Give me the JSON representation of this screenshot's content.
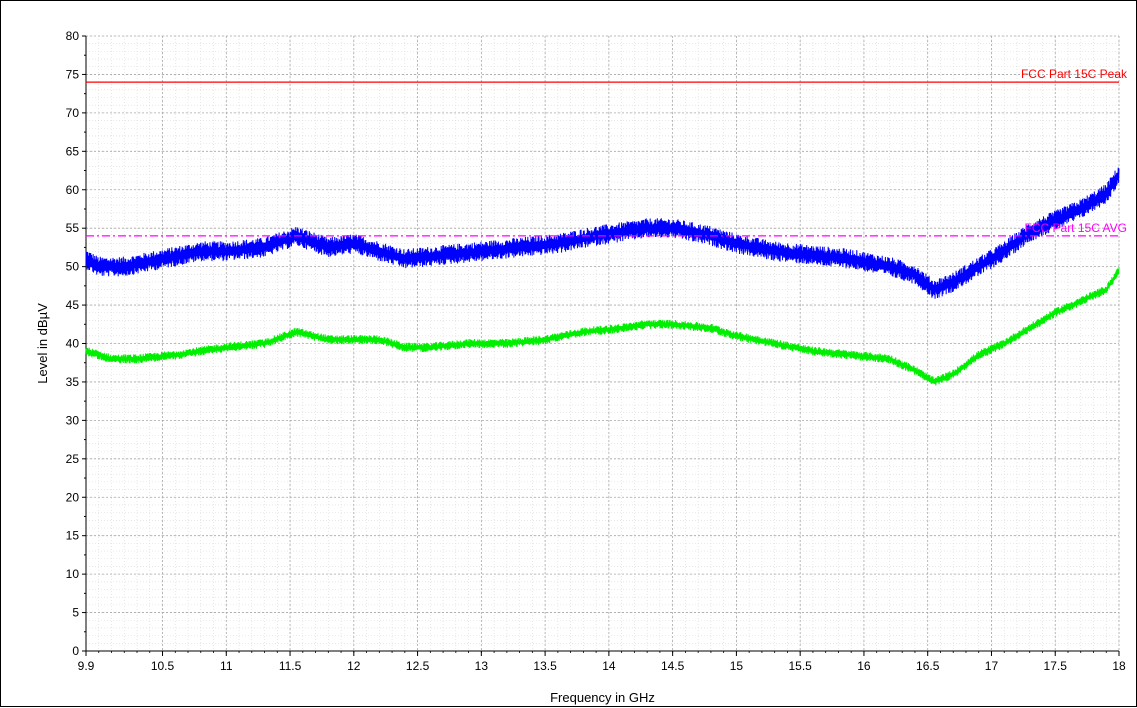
{
  "chart_data": {
    "type": "line",
    "xlabel": "Frequency in GHz",
    "ylabel": "Level in dBµV",
    "xlim": [
      9.9,
      18
    ],
    "ylim": [
      0,
      80
    ],
    "x_ticks": [
      9.9,
      10.5,
      11,
      11.5,
      12,
      12.5,
      13,
      13.5,
      14,
      14.5,
      15,
      15.5,
      16,
      16.5,
      17,
      17.5,
      18
    ],
    "x_tick_labels": [
      "9.9",
      "10.5",
      "11",
      "11.5",
      "12",
      "12.5",
      "13",
      "13.5",
      "14",
      "14.5",
      "15",
      "15.5",
      "16",
      "16.5",
      "17",
      "17.5",
      "18"
    ],
    "y_ticks": [
      0,
      5,
      10,
      15,
      20,
      25,
      30,
      35,
      40,
      45,
      50,
      55,
      60,
      65,
      70,
      75,
      80
    ],
    "y_tick_labels": [
      "0",
      "5",
      "10",
      "15",
      "20",
      "25",
      "30",
      "35",
      "40",
      "45",
      "50",
      "55",
      "60",
      "65",
      "70",
      "75",
      "80"
    ],
    "grid": true,
    "limits": [
      {
        "name": "FCC Part 15C Peak",
        "value": 74,
        "color": "#ff0000",
        "style": "solid"
      },
      {
        "name": "FCC Part 15C AVG",
        "value": 54,
        "color": "#ff00ff",
        "style": "dashdot"
      }
    ],
    "series": [
      {
        "color": "#0000ff",
        "noise": 1.3,
        "x": [
          9.9,
          10.0,
          10.2,
          10.5,
          10.8,
          11.0,
          11.3,
          11.55,
          11.8,
          12.0,
          12.2,
          12.4,
          12.7,
          13.0,
          13.3,
          13.6,
          13.9,
          14.1,
          14.3,
          14.5,
          14.8,
          15.0,
          15.3,
          15.6,
          15.9,
          16.2,
          16.4,
          16.55,
          16.7,
          16.9,
          17.1,
          17.3,
          17.5,
          17.7,
          17.9,
          18.0
        ],
        "y": [
          51,
          50,
          50,
          51,
          52,
          52,
          52.5,
          54,
          52.5,
          53,
          52,
          51,
          51.5,
          52,
          52.5,
          53,
          54,
          54.5,
          55,
          55,
          54,
          53,
          52,
          51.5,
          51,
          50,
          49,
          47,
          48,
          50,
          52,
          54.5,
          56,
          57.5,
          59.5,
          62
        ]
      },
      {
        "color": "#00ee00",
        "noise": 0.6,
        "x": [
          9.9,
          10.1,
          10.3,
          10.6,
          11.0,
          11.3,
          11.55,
          11.8,
          12.0,
          12.2,
          12.4,
          12.6,
          12.9,
          13.2,
          13.5,
          13.8,
          14.1,
          14.3,
          14.5,
          14.8,
          15.0,
          15.3,
          15.6,
          15.9,
          16.2,
          16.4,
          16.55,
          16.7,
          16.9,
          17.1,
          17.3,
          17.5,
          17.7,
          17.9,
          18.0
        ],
        "y": [
          39,
          38,
          38,
          38.5,
          39.5,
          40,
          41.5,
          40.5,
          40.5,
          40.5,
          39.5,
          39.5,
          40,
          40,
          40.5,
          41.5,
          42,
          42.5,
          42.5,
          42,
          41,
          40,
          39,
          38.5,
          38,
          36.5,
          35,
          36,
          38.5,
          40,
          42,
          44,
          45.5,
          47,
          49.5
        ]
      }
    ]
  }
}
